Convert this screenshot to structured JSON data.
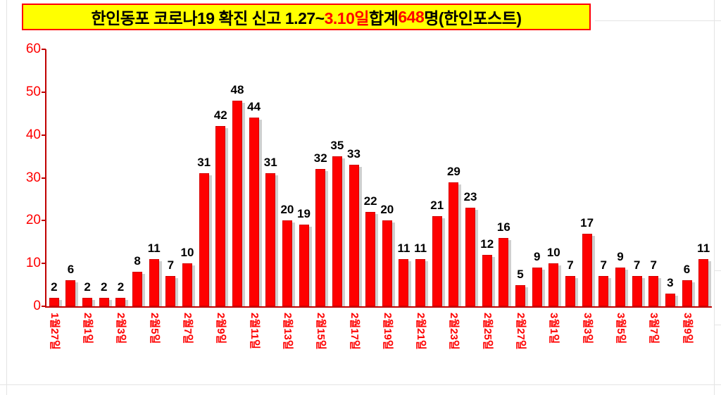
{
  "title": {
    "full_text": "한인동포 코로나19 확진 신고 1.27~3.10일 합계 648명(한인포스트)",
    "segments": [
      {
        "text": "한인동포 코로나19 확진 신고 1.27~",
        "color": "#000000"
      },
      {
        "text": "3.10일",
        "color": "#ff0000"
      },
      {
        "text": " 합계 ",
        "color": "#000000"
      },
      {
        "text": "648",
        "color": "#ff0000"
      },
      {
        "text": "명(한인포스트)",
        "color": "#000000"
      }
    ],
    "background": "#ffff00",
    "border_color": "#ff0000"
  },
  "chart_data": {
    "type": "bar",
    "values": [
      2,
      6,
      2,
      2,
      2,
      8,
      11,
      7,
      10,
      31,
      42,
      48,
      44,
      31,
      20,
      19,
      32,
      35,
      33,
      22,
      20,
      11,
      11,
      21,
      29,
      23,
      12,
      16,
      5,
      9,
      10,
      7,
      17,
      7,
      9,
      7,
      7,
      3,
      6,
      11
    ],
    "x_labels": [
      "1월27일",
      "2월1일",
      "2월3일",
      "2월5일",
      "2월7일",
      "2월9일",
      "2월11일",
      "2월13일",
      "2월15일",
      "2월17일",
      "2월19일",
      "2월21일",
      "2월23일",
      "2월25일",
      "2월27일",
      "3월1일",
      "3월3일",
      "3월5일",
      "3월7일",
      "3월9일"
    ],
    "label_every": 2,
    "y_ticks": [
      0,
      10,
      20,
      30,
      40,
      50,
      60
    ],
    "ylim": [
      0,
      60
    ],
    "total": 648,
    "bar_color": "#fe0000",
    "bar_shadow_color": "#cfcfcf",
    "axis_color": "#c00000",
    "tick_label_color": "#fe0000",
    "value_label_color": "#000000",
    "grid": false,
    "legend": "none"
  }
}
